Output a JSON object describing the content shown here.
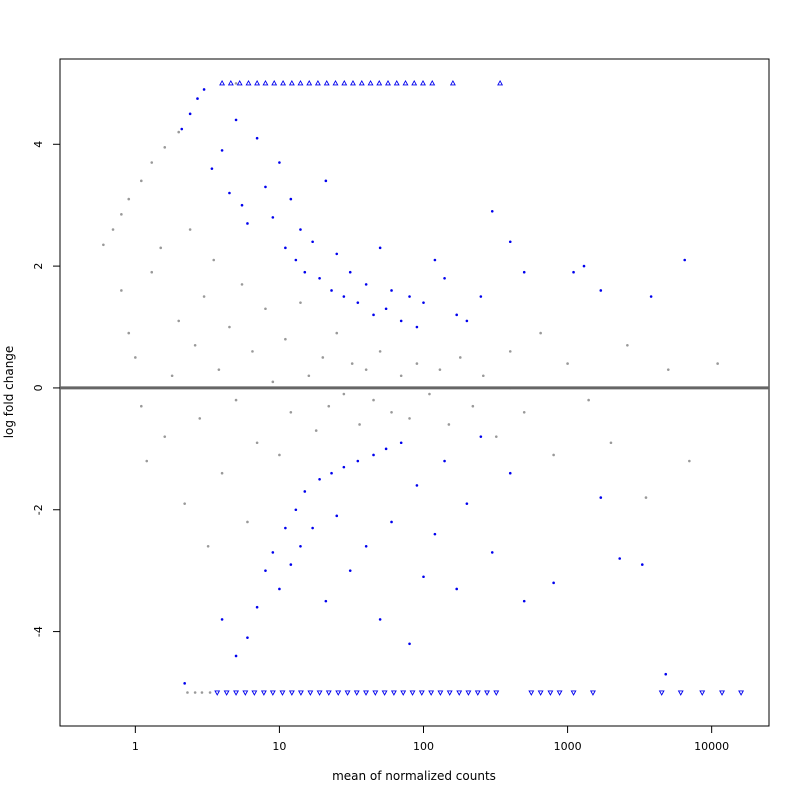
{
  "chart_data": {
    "type": "scatter",
    "title": "",
    "xlabel": "mean of normalized counts",
    "ylabel": "log fold change",
    "x_scale": "log",
    "xlim": [
      0.3,
      25000
    ],
    "ylim": [
      -5.55,
      5.4
    ],
    "x_ticks": [
      1,
      10,
      100,
      1000,
      10000
    ],
    "x_tick_labels": [
      "1",
      "10",
      "100",
      "1000",
      "10000"
    ],
    "y_ticks": [
      -4,
      -2,
      0,
      2,
      4
    ],
    "y_tick_labels": [
      "-4",
      "-2",
      "0",
      "2",
      "4"
    ],
    "hline": 0,
    "grid": false,
    "legend": "none",
    "colors": {
      "not_significant": "#999999",
      "significant": "#0000ee",
      "zero_line": "#666666",
      "axis": "#000000"
    },
    "series": [
      {
        "points": [
          [
            0.6,
            2.35
          ],
          [
            0.7,
            2.6
          ],
          [
            0.8,
            2.85
          ],
          [
            0.9,
            3.1
          ],
          [
            1.1,
            3.4
          ],
          [
            1.3,
            3.7
          ],
          [
            1.6,
            3.95
          ],
          [
            2.0,
            4.2
          ],
          [
            0.8,
            1.6
          ],
          [
            0.9,
            0.9
          ],
          [
            1.0,
            0.5
          ],
          [
            1.1,
            -0.3
          ],
          [
            1.2,
            -1.2
          ],
          [
            1.3,
            1.9
          ],
          [
            1.5,
            2.3
          ],
          [
            1.6,
            -0.8
          ],
          [
            1.8,
            0.2
          ],
          [
            2.0,
            1.1
          ],
          [
            2.2,
            -1.9
          ],
          [
            2.4,
            2.6
          ],
          [
            2.6,
            0.7
          ],
          [
            2.8,
            -0.5
          ],
          [
            3.0,
            1.5
          ],
          [
            3.2,
            -2.6
          ],
          [
            3.5,
            2.1
          ],
          [
            3.8,
            0.3
          ],
          [
            4.0,
            -1.4
          ],
          [
            4.5,
            1.0
          ],
          [
            5.0,
            -0.2
          ],
          [
            5.5,
            1.7
          ],
          [
            6.0,
            -2.2
          ],
          [
            6.5,
            0.6
          ],
          [
            7.0,
            -0.9
          ],
          [
            8.0,
            1.3
          ],
          [
            9.0,
            0.1
          ],
          [
            10.0,
            -1.1
          ],
          [
            11.0,
            0.8
          ],
          [
            12.0,
            -0.4
          ],
          [
            14.0,
            1.4
          ],
          [
            16.0,
            0.2
          ],
          [
            18.0,
            -0.7
          ],
          [
            20.0,
            0.5
          ],
          [
            22.0,
            -0.3
          ],
          [
            25.0,
            0.9
          ],
          [
            28.0,
            -0.1
          ],
          [
            32.0,
            0.4
          ],
          [
            36.0,
            -0.6
          ],
          [
            40.0,
            0.3
          ],
          [
            45.0,
            -0.2
          ],
          [
            50.0,
            0.6
          ],
          [
            60.0,
            -0.4
          ],
          [
            70.0,
            0.2
          ],
          [
            80.0,
            -0.5
          ],
          [
            90.0,
            0.4
          ],
          [
            110.0,
            -0.1
          ],
          [
            130.0,
            0.3
          ],
          [
            150.0,
            -0.6
          ],
          [
            180.0,
            0.5
          ],
          [
            220.0,
            -0.3
          ],
          [
            260.0,
            0.2
          ],
          [
            320.0,
            -0.8
          ],
          [
            400.0,
            0.6
          ],
          [
            500.0,
            -0.4
          ],
          [
            650.0,
            0.9
          ],
          [
            800.0,
            -1.1
          ],
          [
            1000.0,
            0.4
          ],
          [
            1400.0,
            -0.2
          ],
          [
            2000.0,
            -0.9
          ],
          [
            2600.0,
            0.7
          ],
          [
            3500.0,
            -1.8
          ],
          [
            5000.0,
            0.3
          ],
          [
            7000.0,
            -1.2
          ],
          [
            11000.0,
            0.4
          ],
          [
            2.3,
            -5.0
          ],
          [
            2.6,
            -5.0
          ],
          [
            2.9,
            -5.0
          ],
          [
            3.3,
            -5.0
          ],
          [
            5.0,
            5.0
          ],
          [
            400.0,
            0.0
          ]
        ]
      },
      {
        "points": [
          [
            2.1,
            4.25
          ],
          [
            2.4,
            4.5
          ],
          [
            2.7,
            4.75
          ],
          [
            3.0,
            4.9
          ],
          [
            3.4,
            3.6
          ],
          [
            4.0,
            3.9
          ],
          [
            4.5,
            3.2
          ],
          [
            5.0,
            4.4
          ],
          [
            5.5,
            3.0
          ],
          [
            6.0,
            2.7
          ],
          [
            7.0,
            4.1
          ],
          [
            8.0,
            3.3
          ],
          [
            9.0,
            2.8
          ],
          [
            10.0,
            3.7
          ],
          [
            11.0,
            2.3
          ],
          [
            12.0,
            3.1
          ],
          [
            13.0,
            2.1
          ],
          [
            14.0,
            2.6
          ],
          [
            15.0,
            1.9
          ],
          [
            17.0,
            2.4
          ],
          [
            19.0,
            1.8
          ],
          [
            21.0,
            3.4
          ],
          [
            23.0,
            1.6
          ],
          [
            25.0,
            2.2
          ],
          [
            28.0,
            1.5
          ],
          [
            31.0,
            1.9
          ],
          [
            35.0,
            1.4
          ],
          [
            40.0,
            1.7
          ],
          [
            45.0,
            1.2
          ],
          [
            50.0,
            2.3
          ],
          [
            55.0,
            1.3
          ],
          [
            60.0,
            1.6
          ],
          [
            70.0,
            1.1
          ],
          [
            80.0,
            1.5
          ],
          [
            90.0,
            1.0
          ],
          [
            100.0,
            1.4
          ],
          [
            120.0,
            2.1
          ],
          [
            140.0,
            1.8
          ],
          [
            170.0,
            1.2
          ],
          [
            200.0,
            1.1
          ],
          [
            250.0,
            1.5
          ],
          [
            300.0,
            2.9
          ],
          [
            400.0,
            2.4
          ],
          [
            500.0,
            1.9
          ],
          [
            1100.0,
            1.9
          ],
          [
            1300.0,
            2.0
          ],
          [
            1700.0,
            1.6
          ],
          [
            3800.0,
            1.5
          ],
          [
            6500.0,
            2.1
          ],
          [
            2.2,
            -4.85
          ],
          [
            4.0,
            -3.8
          ],
          [
            5.0,
            -4.4
          ],
          [
            6.0,
            -4.1
          ],
          [
            7.0,
            -3.6
          ],
          [
            8.0,
            -3.0
          ],
          [
            9.0,
            -2.7
          ],
          [
            10.0,
            -3.3
          ],
          [
            11.0,
            -2.3
          ],
          [
            12.0,
            -2.9
          ],
          [
            13.0,
            -2.0
          ],
          [
            14.0,
            -2.6
          ],
          [
            15.0,
            -1.7
          ],
          [
            17.0,
            -2.3
          ],
          [
            19.0,
            -1.5
          ],
          [
            21.0,
            -3.5
          ],
          [
            23.0,
            -1.4
          ],
          [
            25.0,
            -2.1
          ],
          [
            28.0,
            -1.3
          ],
          [
            31.0,
            -3.0
          ],
          [
            35.0,
            -1.2
          ],
          [
            40.0,
            -2.6
          ],
          [
            45.0,
            -1.1
          ],
          [
            50.0,
            -3.8
          ],
          [
            55.0,
            -1.0
          ],
          [
            60.0,
            -2.2
          ],
          [
            70.0,
            -0.9
          ],
          [
            80.0,
            -4.2
          ],
          [
            90.0,
            -1.6
          ],
          [
            100.0,
            -3.1
          ],
          [
            120.0,
            -2.4
          ],
          [
            140.0,
            -1.2
          ],
          [
            170.0,
            -3.3
          ],
          [
            200.0,
            -1.9
          ],
          [
            250.0,
            -0.8
          ],
          [
            300.0,
            -2.7
          ],
          [
            400.0,
            -1.4
          ],
          [
            500.0,
            -3.5
          ],
          [
            800.0,
            -3.2
          ],
          [
            1700.0,
            -1.8
          ],
          [
            2300.0,
            -2.8
          ],
          [
            3300.0,
            -2.9
          ],
          [
            4800.0,
            -4.7
          ]
        ]
      },
      {
        "points": [
          [
            4.0,
            5.0
          ],
          [
            4.6,
            5.0
          ],
          [
            5.3,
            5.0
          ],
          [
            6.1,
            5.0
          ],
          [
            7.0,
            5.0
          ],
          [
            8.0,
            5.0
          ],
          [
            9.2,
            5.0
          ],
          [
            10.6,
            5.0
          ],
          [
            12.2,
            5.0
          ],
          [
            14.0,
            5.0
          ],
          [
            16.1,
            5.0
          ],
          [
            18.5,
            5.0
          ],
          [
            21.3,
            5.0
          ],
          [
            24.5,
            5.0
          ],
          [
            28.2,
            5.0
          ],
          [
            32.4,
            5.0
          ],
          [
            37.3,
            5.0
          ],
          [
            42.9,
            5.0
          ],
          [
            49.3,
            5.0
          ],
          [
            56.7,
            5.0
          ],
          [
            65.2,
            5.0
          ],
          [
            75.0,
            5.0
          ],
          [
            86.2,
            5.0
          ],
          [
            99.2,
            5.0
          ],
          [
            115.0,
            5.0
          ],
          [
            160.0,
            5.0
          ],
          [
            340.0,
            5.0
          ]
        ]
      },
      {
        "points": [
          [
            3.7,
            -5.0
          ],
          [
            4.3,
            -5.0
          ],
          [
            5.0,
            -5.0
          ],
          [
            5.8,
            -5.0
          ],
          [
            6.7,
            -5.0
          ],
          [
            7.8,
            -5.0
          ],
          [
            9.0,
            -5.0
          ],
          [
            10.5,
            -5.0
          ],
          [
            12.2,
            -5.0
          ],
          [
            14.1,
            -5.0
          ],
          [
            16.4,
            -5.0
          ],
          [
            19.0,
            -5.0
          ],
          [
            22.0,
            -5.0
          ],
          [
            25.6,
            -5.0
          ],
          [
            29.7,
            -5.0
          ],
          [
            34.4,
            -5.0
          ],
          [
            39.9,
            -5.0
          ],
          [
            46.3,
            -5.0
          ],
          [
            53.7,
            -5.0
          ],
          [
            62.3,
            -5.0
          ],
          [
            72.3,
            -5.0
          ],
          [
            83.9,
            -5.0
          ],
          [
            97.3,
            -5.0
          ],
          [
            113.0,
            -5.0
          ],
          [
            131.0,
            -5.0
          ],
          [
            152.0,
            -5.0
          ],
          [
            177.0,
            -5.0
          ],
          [
            205.0,
            -5.0
          ],
          [
            238.0,
            -5.0
          ],
          [
            276.0,
            -5.0
          ],
          [
            320.0,
            -5.0
          ],
          [
            560.0,
            -5.0
          ],
          [
            650.0,
            -5.0
          ],
          [
            760.0,
            -5.0
          ],
          [
            880.0,
            -5.0
          ],
          [
            1100.0,
            -5.0
          ],
          [
            1500.0,
            -5.0
          ],
          [
            4500.0,
            -5.0
          ],
          [
            6100.0,
            -5.0
          ],
          [
            8600.0,
            -5.0
          ],
          [
            11800.0,
            -5.0
          ],
          [
            16000.0,
            -5.0
          ]
        ]
      }
    ]
  }
}
